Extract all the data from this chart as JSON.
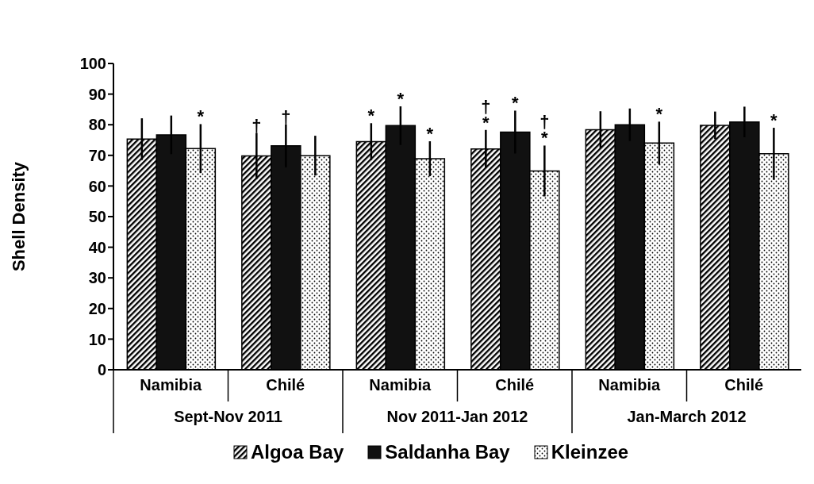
{
  "chart_data": {
    "type": "bar",
    "ylabel": "Shell Density",
    "categories": [
      "Namibia",
      "Chilé",
      "Namibia",
      "Chilé",
      "Namibia",
      "Chilé"
    ],
    "annotations": [
      "Sept-Nov 2011",
      "Nov 2011-Jan 2012",
      "Jan-March 2012"
    ],
    "series": [
      {
        "name": "Algoa Bay",
        "color": "#000000",
        "values": [
          75.3,
          69.8,
          74.5,
          72.1,
          78.4,
          79.8
        ],
        "errors": [
          6.8,
          7.5,
          6,
          6.2,
          6,
          4.5
        ],
        "value_labels": [
          null,
          "†",
          "*",
          "†\n*",
          null,
          null
        ]
      },
      {
        "name": "Saldanha Bay",
        "color": "#111111",
        "values": [
          76.7,
          73.1,
          79.7,
          77.6,
          80,
          80.9
        ],
        "errors": [
          6.3,
          7,
          6.3,
          7,
          5.3,
          5
        ],
        "value_labels": [
          null,
          "†",
          "*",
          "*",
          null,
          null
        ]
      },
      {
        "name": "Kleinzee",
        "color": "#000000",
        "values": [
          72.2,
          69.9,
          68.9,
          64.9,
          74,
          70.5
        ],
        "errors": [
          8,
          6.5,
          5.7,
          8.3,
          7,
          8.5
        ],
        "value_labels": [
          "*",
          null,
          "*",
          "†\n*",
          "*",
          "*"
        ]
      }
    ],
    "ylim": [
      0,
      100
    ],
    "yticks": [
      0,
      10,
      20,
      30,
      40,
      50,
      60,
      70,
      80,
      90,
      100
    ],
    "grid": false,
    "legend": "bottom"
  }
}
